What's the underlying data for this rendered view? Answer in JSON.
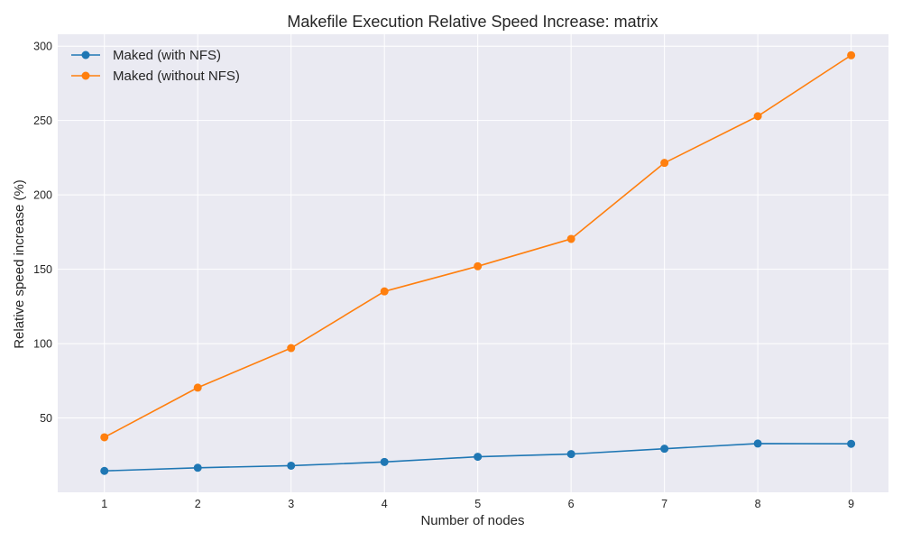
{
  "chart_data": {
    "type": "line",
    "title": "Makefile Execution Relative Speed Increase: matrix",
    "xlabel": "Number of nodes",
    "ylabel": "Relative speed increase (%)",
    "x": [
      1,
      2,
      3,
      4,
      5,
      6,
      7,
      8,
      9
    ],
    "xlim": [
      0.5,
      9.4
    ],
    "ylim": [
      0,
      308
    ],
    "y_ticks": [
      50,
      100,
      150,
      200,
      250,
      300
    ],
    "grid": true,
    "legend_position": "top-left",
    "series": [
      {
        "name": "Maked (with NFS)",
        "color": "#1f77b4",
        "values": [
          14.4,
          16.5,
          17.9,
          20.4,
          23.9,
          25.7,
          29.3,
          32.8,
          32.6
        ]
      },
      {
        "name": "Maked (without NFS)",
        "color": "#ff7f0e",
        "values": [
          37.0,
          70.4,
          97.0,
          135.1,
          152.0,
          170.4,
          221.5,
          252.9,
          293.9
        ]
      }
    ]
  }
}
